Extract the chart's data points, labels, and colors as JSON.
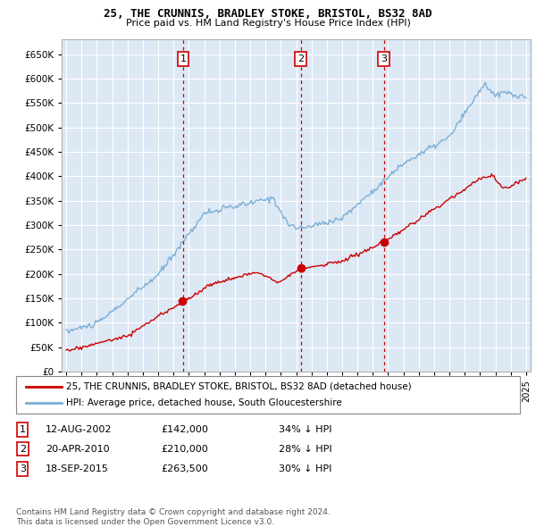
{
  "title1": "25, THE CRUNNIS, BRADLEY STOKE, BRISTOL, BS32 8AD",
  "title2": "Price paid vs. HM Land Registry's House Price Index (HPI)",
  "legend1": "25, THE CRUNNIS, BRADLEY STOKE, BRISTOL, BS32 8AD (detached house)",
  "legend2": "HPI: Average price, detached house, South Gloucestershire",
  "footnote": "Contains HM Land Registry data © Crown copyright and database right 2024.\nThis data is licensed under the Open Government Licence v3.0.",
  "events": [
    {
      "num": 1,
      "date": "12-AUG-2002",
      "price": "£142,000",
      "pct": "34% ↓ HPI",
      "x": 2002.62
    },
    {
      "num": 2,
      "date": "20-APR-2010",
      "price": "£210,000",
      "pct": "28% ↓ HPI",
      "x": 2010.3
    },
    {
      "num": 3,
      "date": "18-SEP-2015",
      "price": "£263,500",
      "pct": "30% ↓ HPI",
      "x": 2015.72
    }
  ],
  "red_color": "#cc0000",
  "blue_color": "#7bafd4",
  "bg_plot": "#dde8f5",
  "grid_color": "#ffffff",
  "ylim": [
    0,
    680000
  ],
  "xlim": [
    1994.7,
    2025.3
  ],
  "yticks": [
    0,
    50000,
    100000,
    150000,
    200000,
    250000,
    300000,
    350000,
    400000,
    450000,
    500000,
    550000,
    600000,
    650000
  ],
  "xticks": [
    1995,
    1996,
    1997,
    1998,
    1999,
    2000,
    2001,
    2002,
    2003,
    2004,
    2005,
    2006,
    2007,
    2008,
    2009,
    2010,
    2011,
    2012,
    2013,
    2014,
    2015,
    2016,
    2017,
    2018,
    2019,
    2020,
    2021,
    2022,
    2023,
    2024,
    2025
  ]
}
